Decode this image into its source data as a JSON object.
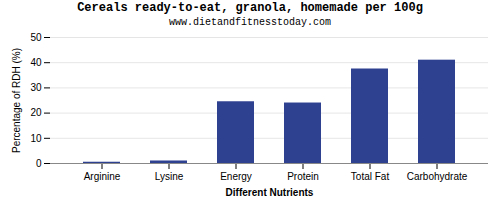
{
  "chart_data": {
    "type": "bar",
    "title": "Cereals ready-to-eat, granola, homemade per 100g",
    "subtitle": "www.dietandfitnesstoday.com",
    "xlabel": "Different Nutrients",
    "ylabel": "Percentage of RDH (%)",
    "categories": [
      "Arginine",
      "Lysine",
      "Energy",
      "Protein",
      "Total Fat",
      "Carbohydrate"
    ],
    "values": [
      0.5,
      1.0,
      24.5,
      24.0,
      37.5,
      41.0
    ],
    "color": "#2e4090",
    "ylim": [
      0,
      50
    ],
    "yticks": [
      0,
      10,
      20,
      30,
      40,
      50
    ],
    "grid": true
  }
}
